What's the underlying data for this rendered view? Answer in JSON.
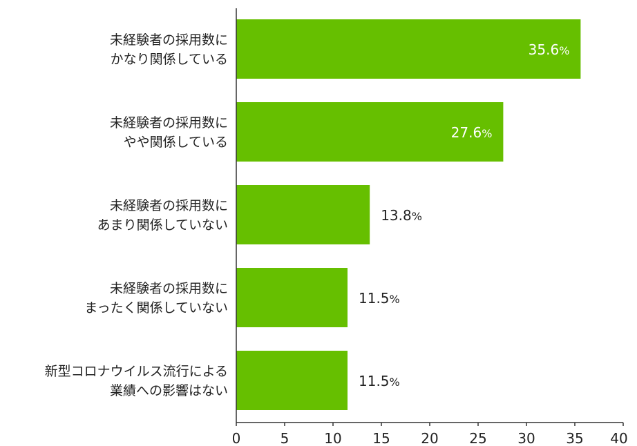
{
  "chart_data": {
    "type": "bar",
    "orientation": "horizontal",
    "categories": [
      [
        "未経験者の採用数に",
        "かなり関係している"
      ],
      [
        "未経験者の採用数に",
        "やや関係している"
      ],
      [
        "未経験者の採用数に",
        "あまり関係していない"
      ],
      [
        "未経験者の採用数に",
        "まったく関係していない"
      ],
      [
        "新型コロナウイルス流行による",
        "業績への影響はない"
      ]
    ],
    "values": [
      35.6,
      27.6,
      13.8,
      11.5,
      11.5
    ],
    "data_labels": [
      "35.6",
      "27.6",
      "13.8",
      "11.5",
      "11.5"
    ],
    "label_unit": "%",
    "xlim": [
      0,
      40
    ],
    "x_ticks": [
      0,
      5,
      10,
      15,
      20,
      25,
      30,
      35,
      40
    ],
    "title": "",
    "xlabel": "",
    "ylabel": "",
    "grid": false,
    "legend": "none",
    "bar_color": "#66bf00",
    "label_inside_color": "#ffffff",
    "label_outside_color": "#222222",
    "axis_color": "#333333"
  }
}
